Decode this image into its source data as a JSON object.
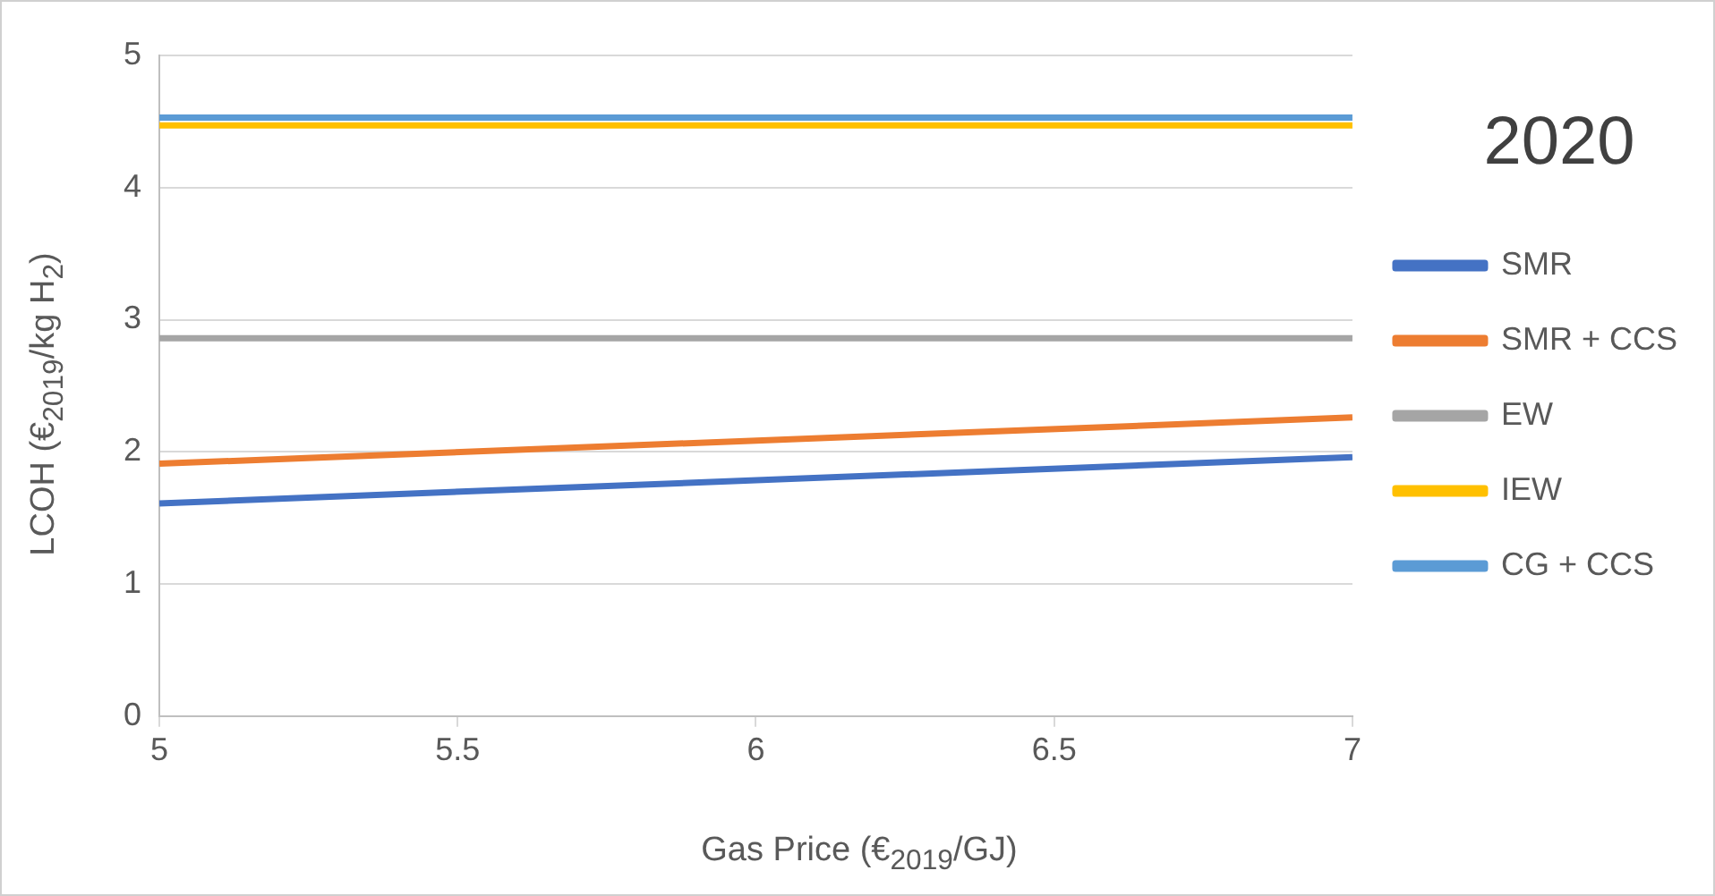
{
  "chart_data": {
    "type": "line",
    "xlabel": "Gas Price (€$_{2019}$/GJ)",
    "ylabel": "LCOH (€$_{2019}$/kg H$_{2}$)",
    "annotations": [
      "2020"
    ],
    "x": [
      5,
      7
    ],
    "series": [
      {
        "name": "SMR",
        "color": "#4472c4",
        "values": [
          1.61,
          1.96
        ]
      },
      {
        "name": "SMR + CCS",
        "color": "#ed7d31",
        "values": [
          1.91,
          2.26
        ]
      },
      {
        "name": "EW",
        "color": "#a5a5a5",
        "values": [
          2.86,
          2.86
        ]
      },
      {
        "name": "IEW",
        "color": "#ffc000",
        "values": [
          4.47,
          4.47
        ]
      },
      {
        "name": "CG + CCS",
        "color": "#5b9bd5",
        "values": [
          4.53,
          4.53
        ]
      }
    ],
    "xlim": [
      5,
      7
    ],
    "xticks": [
      5,
      5.5,
      6,
      6.5,
      7
    ],
    "ylim": [
      0,
      5
    ],
    "yticks": [
      0,
      1,
      2,
      3,
      4,
      5
    ],
    "grid": "y",
    "legend": "right",
    "marker": "none",
    "line_style": "solid"
  }
}
